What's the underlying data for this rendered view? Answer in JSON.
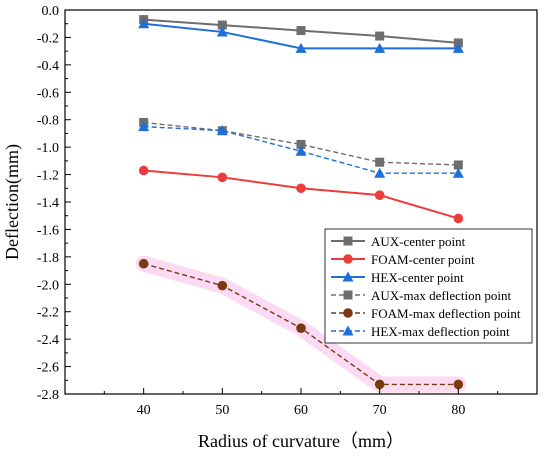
{
  "chart_data": {
    "type": "line",
    "title": "",
    "xlabel": "Radius of curvature（mm）",
    "ylabel": "Deflection(mm)",
    "x": [
      40,
      50,
      60,
      70,
      80
    ],
    "xlim": [
      30,
      90
    ],
    "ylim": [
      -2.8,
      0.0
    ],
    "xticks": [
      "40",
      "50",
      "60",
      "70",
      "80"
    ],
    "yticks": [
      "0.0",
      "-0.2",
      "-0.4",
      "-0.6",
      "-0.8",
      "-1.0",
      "-1.2",
      "-1.4",
      "-1.6",
      "-1.8",
      "-2.0",
      "-2.2",
      "-2.4",
      "-2.6",
      "-2.8"
    ],
    "grid": false,
    "legend_position": "right",
    "series": [
      {
        "name": "AUX-center point",
        "values": [
          -0.07,
          -0.11,
          -0.15,
          -0.19,
          -0.24
        ],
        "color": "#6e6e6e",
        "marker": "square",
        "dash": "solid"
      },
      {
        "name": "FOAM-center point",
        "values": [
          -1.17,
          -1.22,
          -1.3,
          -1.35,
          -1.52
        ],
        "color": "#ee3b3b",
        "marker": "circle",
        "dash": "solid"
      },
      {
        "name": "HEX-center point",
        "values": [
          -0.1,
          -0.16,
          -0.28,
          -0.28,
          -0.28
        ],
        "color": "#1e6fd8",
        "marker": "triangle",
        "dash": "solid"
      },
      {
        "name": "AUX-max deflection point",
        "values": [
          -0.82,
          -0.88,
          -0.98,
          -1.11,
          -1.13
        ],
        "color": "#6e6e6e",
        "marker": "square",
        "dash": "dashed"
      },
      {
        "name": "FOAM-max deflection point",
        "values": [
          -1.85,
          -2.01,
          -2.32,
          -2.73,
          -2.73
        ],
        "color": "#7a3a10",
        "marker": "circle",
        "dash": "dashed",
        "highlight": "#fbd3f1"
      },
      {
        "name": "HEX-max deflection point",
        "values": [
          -0.85,
          -0.88,
          -1.03,
          -1.19,
          -1.19
        ],
        "color": "#1e6fd8",
        "marker": "triangle",
        "dash": "dashed"
      }
    ]
  }
}
